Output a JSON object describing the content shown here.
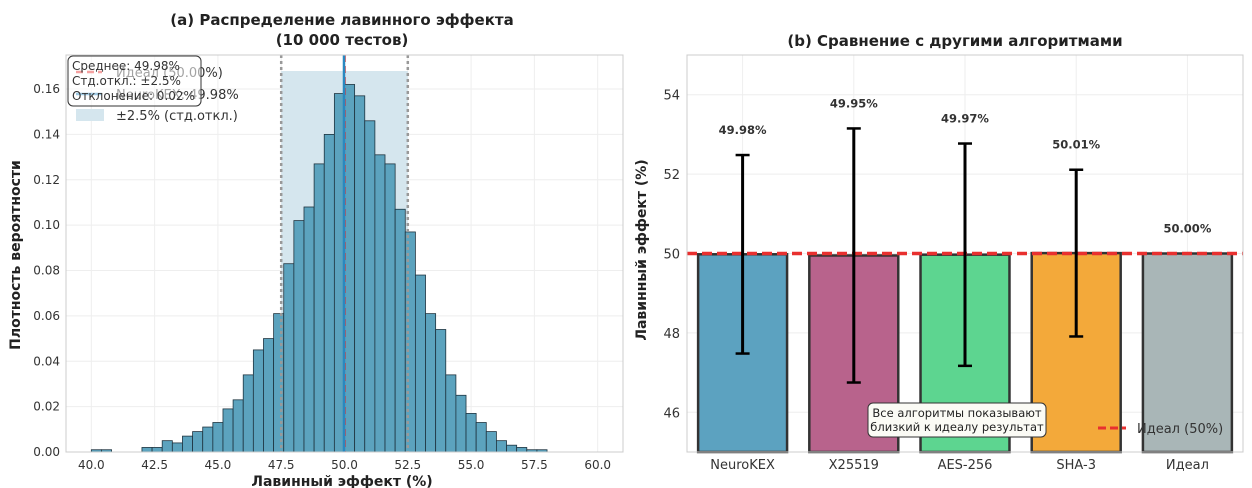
{
  "chart_data": [
    {
      "type": "bar",
      "subtype": "histogram",
      "title": "(a) Распределение лавинного эффекта",
      "subtitle": "(10 000 тестов)",
      "xlabel": "Лавинный эффект (%)",
      "ylabel": "Плотность вероятности",
      "xlim": [
        39.0,
        61.0
      ],
      "ylim": [
        0.0,
        0.175
      ],
      "xticks": [
        "40.0",
        "42.5",
        "45.0",
        "47.5",
        "50.0",
        "52.5",
        "55.0",
        "57.5",
        "60.0"
      ],
      "xtick_values": [
        40.0,
        42.5,
        45.0,
        47.5,
        50.0,
        52.5,
        55.0,
        57.5,
        60.0
      ],
      "yticks": [
        "0.00",
        "0.02",
        "0.04",
        "0.06",
        "0.08",
        "0.10",
        "0.12",
        "0.14",
        "0.16"
      ],
      "ytick_values": [
        0.0,
        0.02,
        0.04,
        0.06,
        0.08,
        0.1,
        0.12,
        0.14,
        0.16
      ],
      "bin_width": 0.4,
      "bin_starts": [
        40.0,
        40.4,
        40.8,
        41.2,
        41.6,
        42.0,
        42.4,
        42.8,
        43.2,
        43.6,
        44.0,
        44.4,
        44.8,
        45.2,
        45.6,
        46.0,
        46.4,
        46.8,
        47.2,
        47.6,
        48.0,
        48.4,
        48.8,
        49.2,
        49.6,
        50.0,
        50.4,
        50.8,
        51.2,
        51.6,
        52.0,
        52.4,
        52.8,
        53.2,
        53.6,
        54.0,
        54.4,
        54.8,
        55.2,
        55.6,
        56.0,
        56.4,
        56.8,
        57.2,
        57.6,
        58.0,
        58.4,
        58.8,
        59.2,
        59.6
      ],
      "densities": [
        0.001,
        0.001,
        0.0,
        0.0,
        0.0,
        0.002,
        0.002,
        0.005,
        0.004,
        0.007,
        0.009,
        0.011,
        0.013,
        0.019,
        0.023,
        0.034,
        0.045,
        0.05,
        0.061,
        0.083,
        0.102,
        0.108,
        0.127,
        0.14,
        0.158,
        0.162,
        0.157,
        0.146,
        0.131,
        0.127,
        0.107,
        0.097,
        0.078,
        0.061,
        0.054,
        0.034,
        0.025,
        0.017,
        0.013,
        0.009,
        0.005,
        0.003,
        0.002,
        0.001,
        0.001,
        0.0,
        0.0,
        0.0,
        0.0,
        0.0
      ],
      "colors": {
        "bars": "#5ca3be",
        "ideal": "#e8302f",
        "mean": "#2a88c0",
        "band": "#d5e6ee",
        "dotted": "#999999"
      },
      "ideal_value": 50.0,
      "mean_value": 49.98,
      "std_band": [
        47.5,
        52.5
      ],
      "legend": [
        "Идеал (50.00%)",
        "NeuroKEX: 49.98%",
        "±2.5% (стд.откл.)"
      ],
      "stats_box": [
        "Среднее: 49.98%",
        "Стд.откл.: ±2.5%",
        "Отклонение: 0.02%"
      ],
      "legend_placement": "upper-left",
      "grid": true
    },
    {
      "type": "bar",
      "title": "(b) Сравнение с другими алгоритмами",
      "xlabel": "",
      "ylabel": "Лавинный эффект (%)",
      "categories": [
        "NeuroKEX",
        "X25519",
        "AES-256",
        "SHA-3",
        "Идеал"
      ],
      "values": [
        49.98,
        49.95,
        49.97,
        50.01,
        50.0
      ],
      "value_labels": [
        "49.98%",
        "49.95%",
        "49.97%",
        "50.01%",
        "50.00%"
      ],
      "errors": [
        2.5,
        3.2,
        2.8,
        2.1,
        0
      ],
      "colors": [
        "#5ca2c0",
        "#b8638c",
        "#5dd590",
        "#f3a93a",
        "#a9b6b7"
      ],
      "ylim": [
        45.0,
        55.0
      ],
      "yticks": [
        "46",
        "48",
        "50",
        "52",
        "54"
      ],
      "ytick_values": [
        46,
        48,
        50,
        52,
        54
      ],
      "ideal_line": 50.0,
      "ideal_color": "#e8302f",
      "legend": [
        "Идеал (50%)"
      ],
      "legend_placement": "lower-right",
      "annotation": [
        "Все алгоритмы показывают",
        "близкий к идеалу результат"
      ],
      "grid": true
    }
  ]
}
